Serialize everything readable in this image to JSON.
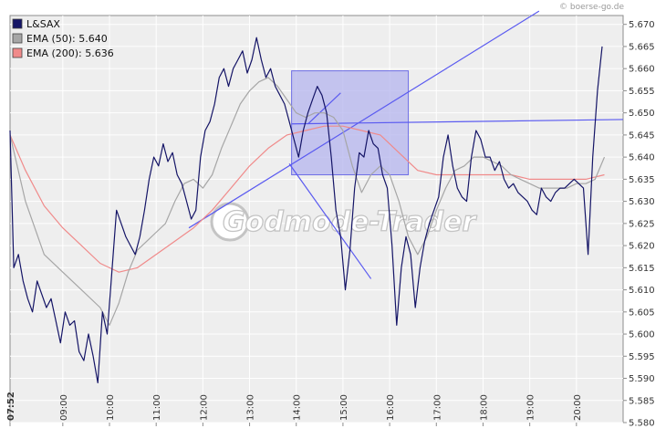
{
  "source_label": "© boerse-go.de",
  "watermark": "Godmode-Trader",
  "colors": {
    "plot_bg": "#eeeeee",
    "grid": "#ffffff",
    "price": "#141466",
    "ema50": "#a6a6a6",
    "ema200": "#f08a8a",
    "trendline": "#5a5af0",
    "box_fill": "#b4b4ee",
    "box_stroke": "#6e6ee6"
  },
  "chart_data": {
    "type": "line",
    "title": "",
    "xlabel": "",
    "ylabel": "",
    "ylim": [
      5.58,
      5.672
    ],
    "y_ticks": [
      "5.580",
      "5.585",
      "5.590",
      "5.595",
      "5.600",
      "5.605",
      "5.610",
      "5.615",
      "5.620",
      "5.625",
      "5.630",
      "5.635",
      "5.640",
      "5.645",
      "5.650",
      "5.655",
      "5.660",
      "5.665",
      "5.670"
    ],
    "x_range_hours": [
      7.87,
      21.0
    ],
    "x_ticks": [
      {
        "label": "07:52",
        "t": 7.87,
        "bold": true
      },
      {
        "label": "09:00",
        "t": 9
      },
      {
        "label": "10:00",
        "t": 10
      },
      {
        "label": "11:00",
        "t": 11
      },
      {
        "label": "12:00",
        "t": 12
      },
      {
        "label": "13:00",
        "t": 13
      },
      {
        "label": "14:00",
        "t": 14
      },
      {
        "label": "15:00",
        "t": 15
      },
      {
        "label": "16:00",
        "t": 16
      },
      {
        "label": "17:00",
        "t": 17
      },
      {
        "label": "18:00",
        "t": 18
      },
      {
        "label": "19:00",
        "t": 19
      },
      {
        "label": "20:00",
        "t": 20
      }
    ],
    "legend_position": "top-left",
    "legend": [
      {
        "label": "L&SAX",
        "color": "#141466"
      },
      {
        "label": "EMA (50): 5.640",
        "color": "#a6a6a6"
      },
      {
        "label": "EMA (200): 5.636",
        "color": "#f08a8a"
      }
    ],
    "series": [
      {
        "name": "L&SAX",
        "x": [
          7.87,
          7.95,
          8.05,
          8.15,
          8.25,
          8.35,
          8.45,
          8.55,
          8.65,
          8.75,
          8.85,
          8.95,
          9.05,
          9.15,
          9.25,
          9.35,
          9.45,
          9.55,
          9.65,
          9.75,
          9.85,
          9.95,
          10.05,
          10.15,
          10.25,
          10.35,
          10.45,
          10.55,
          10.65,
          10.75,
          10.85,
          10.95,
          11.05,
          11.15,
          11.25,
          11.35,
          11.45,
          11.55,
          11.65,
          11.75,
          11.85,
          11.95,
          12.05,
          12.15,
          12.25,
          12.35,
          12.45,
          12.55,
          12.65,
          12.75,
          12.85,
          12.95,
          13.05,
          13.15,
          13.25,
          13.35,
          13.45,
          13.55,
          13.65,
          13.75,
          13.85,
          13.95,
          14.05,
          14.15,
          14.25,
          14.35,
          14.45,
          14.55,
          14.65,
          14.75,
          14.85,
          14.95,
          15.05,
          15.15,
          15.25,
          15.35,
          15.45,
          15.55,
          15.65,
          15.75,
          15.85,
          15.95,
          16.05,
          16.15,
          16.25,
          16.35,
          16.45,
          16.55,
          16.65,
          16.75,
          16.85,
          16.95,
          17.05,
          17.15,
          17.25,
          17.35,
          17.45,
          17.55,
          17.65,
          17.75,
          17.85,
          17.95,
          18.05,
          18.15,
          18.25,
          18.35,
          18.45,
          18.55,
          18.65,
          18.75,
          18.85,
          18.95,
          19.05,
          19.15,
          19.25,
          19.35,
          19.45,
          19.55,
          19.65,
          19.75,
          19.85,
          19.95,
          20.05,
          20.15,
          20.25,
          20.35,
          20.45,
          20.55
        ],
        "values": [
          5.646,
          5.615,
          5.618,
          5.612,
          5.608,
          5.605,
          5.612,
          5.609,
          5.606,
          5.608,
          5.603,
          5.598,
          5.605,
          5.602,
          5.603,
          5.596,
          5.594,
          5.6,
          5.595,
          5.589,
          5.605,
          5.6,
          5.614,
          5.628,
          5.625,
          5.622,
          5.62,
          5.618,
          5.622,
          5.628,
          5.635,
          5.64,
          5.638,
          5.643,
          5.639,
          5.641,
          5.636,
          5.634,
          5.63,
          5.626,
          5.628,
          5.64,
          5.646,
          5.648,
          5.652,
          5.658,
          5.66,
          5.656,
          5.66,
          5.662,
          5.664,
          5.659,
          5.662,
          5.667,
          5.662,
          5.658,
          5.66,
          5.656,
          5.654,
          5.652,
          5.648,
          5.644,
          5.64,
          5.646,
          5.65,
          5.653,
          5.656,
          5.654,
          5.65,
          5.64,
          5.628,
          5.622,
          5.61,
          5.619,
          5.633,
          5.641,
          5.64,
          5.646,
          5.643,
          5.642,
          5.636,
          5.633,
          5.62,
          5.602,
          5.615,
          5.622,
          5.618,
          5.606,
          5.615,
          5.621,
          5.625,
          5.628,
          5.631,
          5.64,
          5.645,
          5.638,
          5.633,
          5.631,
          5.63,
          5.64,
          5.646,
          5.644,
          5.64,
          5.64,
          5.637,
          5.639,
          5.635,
          5.633,
          5.634,
          5.632,
          5.631,
          5.63,
          5.628,
          5.627,
          5.633,
          5.631,
          5.63,
          5.632,
          5.633,
          5.633,
          5.634,
          5.635,
          5.634,
          5.633,
          5.618,
          5.64,
          5.655,
          5.665
        ]
      },
      {
        "name": "EMA (50): 5.640",
        "x": [
          7.87,
          8.2,
          8.6,
          9.0,
          9.4,
          9.8,
          10.0,
          10.2,
          10.4,
          10.6,
          10.8,
          11.0,
          11.2,
          11.4,
          11.6,
          11.8,
          12.0,
          12.2,
          12.4,
          12.6,
          12.8,
          13.0,
          13.2,
          13.4,
          13.6,
          13.8,
          14.0,
          14.2,
          14.4,
          14.6,
          14.8,
          15.0,
          15.2,
          15.4,
          15.6,
          15.8,
          16.0,
          16.2,
          16.4,
          16.6,
          16.8,
          17.0,
          17.2,
          17.4,
          17.6,
          17.8,
          18.0,
          18.2,
          18.4,
          18.6,
          18.8,
          19.0,
          19.2,
          19.4,
          19.6,
          19.8,
          20.0,
          20.2,
          20.4,
          20.6
        ],
        "values": [
          5.645,
          5.63,
          5.618,
          5.614,
          5.61,
          5.606,
          5.602,
          5.607,
          5.614,
          5.619,
          5.621,
          5.623,
          5.625,
          5.63,
          5.634,
          5.635,
          5.633,
          5.636,
          5.642,
          5.647,
          5.652,
          5.655,
          5.657,
          5.658,
          5.656,
          5.653,
          5.65,
          5.649,
          5.65,
          5.65,
          5.649,
          5.646,
          5.638,
          5.632,
          5.636,
          5.638,
          5.636,
          5.63,
          5.622,
          5.618,
          5.622,
          5.628,
          5.633,
          5.637,
          5.638,
          5.64,
          5.64,
          5.639,
          5.638,
          5.636,
          5.635,
          5.634,
          5.633,
          5.633,
          5.633,
          5.633,
          5.634,
          5.634,
          5.635,
          5.64
        ]
      },
      {
        "name": "EMA (200): 5.636",
        "x": [
          7.87,
          8.2,
          8.6,
          9.0,
          9.4,
          9.8,
          10.2,
          10.6,
          11.0,
          11.4,
          11.8,
          12.2,
          12.6,
          13.0,
          13.4,
          13.8,
          14.2,
          14.6,
          15.0,
          15.4,
          15.8,
          16.2,
          16.6,
          17.0,
          17.4,
          17.8,
          18.2,
          18.6,
          19.0,
          19.4,
          19.8,
          20.2,
          20.6
        ],
        "values": [
          5.645,
          5.637,
          5.629,
          5.624,
          5.62,
          5.616,
          5.614,
          5.615,
          5.618,
          5.621,
          5.624,
          5.628,
          5.633,
          5.638,
          5.642,
          5.645,
          5.646,
          5.647,
          5.647,
          5.646,
          5.645,
          5.641,
          5.637,
          5.636,
          5.636,
          5.636,
          5.636,
          5.636,
          5.635,
          5.635,
          5.635,
          5.635,
          5.636
        ]
      }
    ],
    "annotations": {
      "trendlines": [
        {
          "from": [
            11.7,
            5.624
          ],
          "to": [
            19.2,
            5.673
          ]
        },
        {
          "from": [
            13.9,
            5.6475
          ],
          "to": [
            21.0,
            5.6485
          ]
        },
        {
          "from": [
            13.85,
            5.6385
          ],
          "to": [
            15.6,
            5.6125
          ]
        },
        {
          "from": [
            14.25,
            5.6475
          ],
          "to": [
            14.95,
            5.6545
          ]
        }
      ],
      "box": {
        "x": [
          13.9,
          16.4
        ],
        "y": [
          5.636,
          5.6595
        ]
      }
    }
  }
}
